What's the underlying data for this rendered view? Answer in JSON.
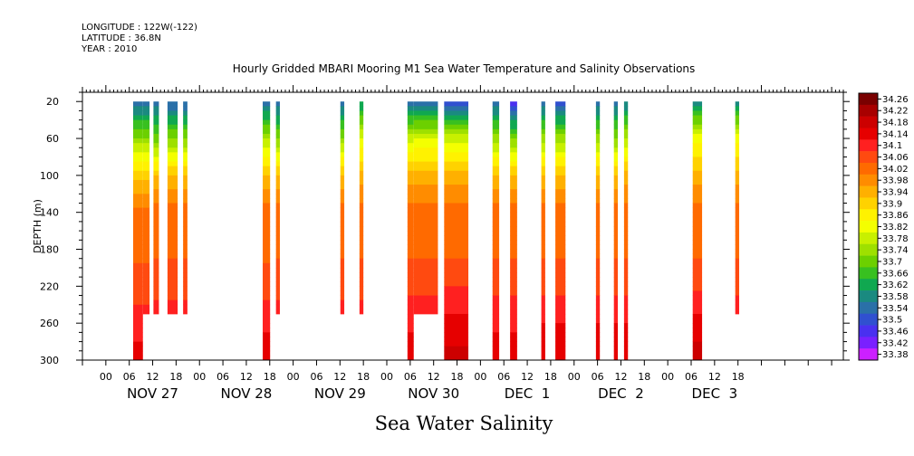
{
  "header": {
    "longitude": "LONGITUDE : 122W(-122)",
    "latitude": "LATITUDE : 36.8N",
    "year": "YEAR : 2010"
  },
  "chart_data": {
    "type": "heatmap",
    "title": "Hourly Gridded MBARI Mooring M1 Sea Water Temperature and Salinity Observations",
    "subtitle": "Sea Water Salinity",
    "ylabel": "DEPTH (m)",
    "xlabel": "",
    "x_unit": "hours since Nov 26 2010 00:00",
    "xlim": [
      -6,
      189
    ],
    "ylim": [
      10,
      300
    ],
    "y_ticks": [
      20,
      60,
      100,
      140,
      180,
      220,
      260,
      300
    ],
    "x_hour_ticks": [
      "00",
      "06",
      "12",
      "18",
      "00",
      "06",
      "12",
      "18",
      "00",
      "06",
      "12",
      "18",
      "00",
      "06",
      "12",
      "18",
      "00",
      "06",
      "12",
      "18",
      "00",
      "06",
      "12",
      "18",
      "00",
      "06",
      "12",
      "18"
    ],
    "x_hour_tick_positions": [
      0,
      6,
      12,
      18,
      24,
      30,
      36,
      42,
      48,
      54,
      60,
      66,
      72,
      78,
      84,
      90,
      96,
      102,
      108,
      114,
      120,
      126,
      132,
      138,
      144,
      150,
      156,
      162
    ],
    "day_labels": [
      "NOV 27",
      "NOV 28",
      "NOV 29",
      "NOV 30",
      "DEC  1",
      "DEC  2",
      "DEC  3"
    ],
    "colorbar": {
      "levels": [
        "34.26",
        "34.22",
        "34.18",
        "34.14",
        "34.1",
        "34.06",
        "34.02",
        "33.98",
        "33.94",
        "33.9",
        "33.86",
        "33.82",
        "33.78",
        "33.74",
        "33.7",
        "33.66",
        "33.62",
        "33.58",
        "33.54",
        "33.5",
        "33.46",
        "33.42",
        "33.38"
      ],
      "colors": [
        "#7a0000",
        "#a80000",
        "#cc0000",
        "#e60000",
        "#ff2020",
        "#ff4a10",
        "#ff6a00",
        "#ff8c00",
        "#ffb000",
        "#ffd200",
        "#fff200",
        "#f4ff00",
        "#c8f000",
        "#9ee000",
        "#6cd000",
        "#38c020",
        "#10a850",
        "#1a8a80",
        "#2a70a8",
        "#3050d0",
        "#4a30f0",
        "#7a20ff",
        "#cc20ff"
      ]
    },
    "columns": [
      {
        "x0": 7,
        "x1": 9.5,
        "ymax": 300,
        "profile": [
          33.55,
          33.75,
          33.92,
          34.04,
          34.05,
          34.08,
          34.12,
          34.16
        ]
      },
      {
        "x0": 9.5,
        "x1": 11.2,
        "ymax": 250,
        "profile": [
          33.55,
          33.75,
          33.92,
          34.04,
          34.05,
          34.08,
          34.12,
          34.16
        ]
      },
      {
        "x0": 12.2,
        "x1": 13.6,
        "ymax": 250,
        "profile": [
          33.56,
          33.72,
          33.94,
          34.04,
          34.05,
          34.09,
          34.12,
          34.15
        ]
      },
      {
        "x0": 15.8,
        "x1": 18.4,
        "ymax": 250,
        "profile": [
          33.54,
          33.74,
          33.95,
          34.04,
          34.05,
          34.09,
          34.12,
          34.15
        ]
      },
      {
        "x0": 19.8,
        "x1": 20.9,
        "ymax": 250,
        "profile": [
          33.54,
          33.74,
          33.94,
          34.04,
          34.05,
          34.09,
          34.12,
          34.15
        ]
      },
      {
        "x0": 40.2,
        "x1": 42.1,
        "ymax": 300,
        "profile": [
          33.56,
          33.78,
          33.95,
          34.04,
          34.05,
          34.08,
          34.13,
          34.18
        ]
      },
      {
        "x0": 43.6,
        "x1": 44.6,
        "ymax": 250,
        "profile": [
          33.55,
          33.74,
          33.94,
          34.04,
          34.05,
          34.09,
          34.12,
          34.16
        ]
      },
      {
        "x0": 60.1,
        "x1": 61.1,
        "ymax": 250,
        "profile": [
          33.55,
          33.75,
          33.95,
          34.04,
          34.05,
          34.09,
          34.12,
          34.16
        ]
      },
      {
        "x0": 65.0,
        "x1": 66.0,
        "ymax": 250,
        "profile": [
          33.62,
          33.82,
          33.96,
          34.04,
          34.05,
          34.09,
          34.12,
          34.16
        ]
      },
      {
        "x0": 77.3,
        "x1": 78.9,
        "ymax": 300,
        "profile": [
          33.56,
          33.8,
          33.96,
          34.04,
          34.05,
          34.09,
          34.13,
          34.18
        ]
      },
      {
        "x0": 78.9,
        "x1": 85.1,
        "ymax": 250,
        "profile": [
          33.56,
          33.82,
          33.96,
          34.04,
          34.05,
          34.09,
          34.14,
          34.18
        ]
      },
      {
        "x0": 86.7,
        "x1": 92.9,
        "ymax": 300,
        "profile": [
          33.52,
          33.8,
          33.96,
          34.04,
          34.05,
          34.1,
          34.15,
          34.2
        ]
      },
      {
        "x0": 99.1,
        "x1": 100.8,
        "ymax": 300,
        "profile": [
          33.54,
          33.76,
          33.95,
          34.04,
          34.05,
          34.09,
          34.13,
          34.18
        ]
      },
      {
        "x0": 103.6,
        "x1": 105.4,
        "ymax": 300,
        "profile": [
          33.48,
          33.74,
          33.95,
          34.04,
          34.05,
          34.09,
          34.13,
          34.18
        ]
      },
      {
        "x0": 111.6,
        "x1": 112.6,
        "ymax": 300,
        "profile": [
          33.54,
          33.76,
          33.95,
          34.04,
          34.05,
          34.09,
          34.14,
          34.18
        ]
      },
      {
        "x0": 115.2,
        "x1": 117.8,
        "ymax": 300,
        "profile": [
          33.52,
          33.76,
          33.95,
          34.04,
          34.05,
          34.09,
          34.14,
          34.18
        ]
      },
      {
        "x0": 125.6,
        "x1": 126.6,
        "ymax": 300,
        "profile": [
          33.55,
          33.76,
          33.95,
          34.04,
          34.05,
          34.09,
          34.14,
          34.18
        ]
      },
      {
        "x0": 130.2,
        "x1": 131.2,
        "ymax": 300,
        "profile": [
          33.56,
          33.74,
          33.95,
          34.04,
          34.05,
          34.09,
          34.14,
          34.18
        ]
      },
      {
        "x0": 132.8,
        "x1": 133.8,
        "ymax": 300,
        "profile": [
          33.58,
          33.78,
          33.96,
          34.04,
          34.05,
          34.09,
          34.14,
          34.18
        ]
      },
      {
        "x0": 150.4,
        "x1": 152.8,
        "ymax": 300,
        "profile": [
          33.6,
          33.84,
          33.96,
          34.04,
          34.05,
          34.09,
          34.16,
          34.2
        ]
      },
      {
        "x0": 161.3,
        "x1": 162.3,
        "ymax": 250,
        "profile": [
          33.6,
          33.84,
          33.96,
          34.04,
          34.05,
          34.09,
          34.14,
          34.18
        ]
      }
    ]
  }
}
